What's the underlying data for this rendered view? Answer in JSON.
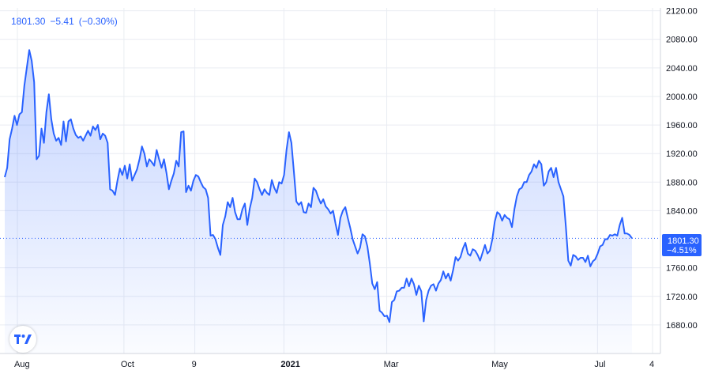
{
  "legend": {
    "last": "1801.30",
    "change": "−5.41",
    "change_pct": "(−0.30%)"
  },
  "badge": {
    "price": "1801.30",
    "pct": "−4.51%"
  },
  "colors": {
    "line": "#2962ff",
    "grid": "#e9ecf2",
    "badge": "#2962ff",
    "axis_text": "#131722"
  },
  "icons": {
    "logo": "tradingview-logo-icon"
  },
  "chart_data": {
    "type": "area",
    "title": "",
    "xlabel": "",
    "ylabel": "",
    "ylim": [
      1640,
      2124
    ],
    "x_ticks": [
      "Aug",
      "Oct",
      "9",
      "2021",
      "Mar",
      "May",
      "Jul",
      "4"
    ],
    "y_ticks": [
      "2120.00",
      "2080.00",
      "2040.00",
      "2000.00",
      "1960.00",
      "1920.00",
      "1880.00",
      "1840.00",
      "1760.00",
      "1720.00",
      "1680.00"
    ],
    "last_value": 1801.3,
    "series": [
      {
        "values": [
          1887,
          1900,
          1940,
          1955,
          1973,
          1960,
          1975,
          1978,
          2015,
          2040,
          2065,
          2050,
          2020,
          1912,
          1917,
          1955,
          1935,
          1978,
          2003,
          1968,
          1948,
          1938,
          1942,
          1932,
          1965,
          1937,
          1965,
          1968,
          1955,
          1946,
          1942,
          1944,
          1938,
          1945,
          1952,
          1945,
          1958,
          1953,
          1960,
          1940,
          1948,
          1945,
          1935,
          1870,
          1868,
          1862,
          1882,
          1899,
          1890,
          1903,
          1885,
          1905,
          1882,
          1890,
          1898,
          1912,
          1930,
          1920,
          1902,
          1912,
          1908,
          1903,
          1925,
          1912,
          1900,
          1912,
          1893,
          1870,
          1882,
          1892,
          1910,
          1902,
          1950,
          1951,
          1866,
          1875,
          1868,
          1882,
          1890,
          1888,
          1880,
          1873,
          1870,
          1858,
          1805,
          1806,
          1800,
          1788,
          1778,
          1820,
          1832,
          1852,
          1845,
          1858,
          1838,
          1828,
          1828,
          1842,
          1850,
          1820,
          1843,
          1858,
          1885,
          1880,
          1870,
          1862,
          1870,
          1865,
          1862,
          1883,
          1872,
          1865,
          1880,
          1878,
          1890,
          1925,
          1950,
          1935,
          1895,
          1853,
          1848,
          1852,
          1838,
          1837,
          1850,
          1845,
          1872,
          1868,
          1858,
          1850,
          1856,
          1846,
          1842,
          1836,
          1840,
          1822,
          1806,
          1830,
          1840,
          1845,
          1830,
          1816,
          1800,
          1790,
          1780,
          1788,
          1807,
          1804,
          1790,
          1766,
          1738,
          1730,
          1740,
          1700,
          1697,
          1692,
          1693,
          1684,
          1712,
          1715,
          1727,
          1728,
          1732,
          1732,
          1745,
          1734,
          1745,
          1737,
          1722,
          1735,
          1727,
          1685,
          1715,
          1728,
          1735,
          1737,
          1728,
          1738,
          1743,
          1755,
          1745,
          1752,
          1742,
          1757,
          1775,
          1770,
          1775,
          1787,
          1795,
          1780,
          1777,
          1786,
          1784,
          1778,
          1770,
          1781,
          1792,
          1780,
          1784,
          1800,
          1825,
          1838,
          1835,
          1826,
          1834,
          1830,
          1828,
          1817,
          1842,
          1860,
          1870,
          1872,
          1880,
          1880,
          1890,
          1895,
          1905,
          1900,
          1910,
          1905,
          1875,
          1880,
          1895,
          1900,
          1887,
          1900,
          1880,
          1870,
          1860,
          1818,
          1770,
          1763,
          1778,
          1776,
          1771,
          1774,
          1774,
          1768,
          1777,
          1762,
          1769,
          1772,
          1780,
          1790,
          1792,
          1800,
          1800,
          1806,
          1805,
          1807,
          1805,
          1820,
          1830,
          1808,
          1808,
          1806,
          1801.3
        ]
      }
    ]
  }
}
